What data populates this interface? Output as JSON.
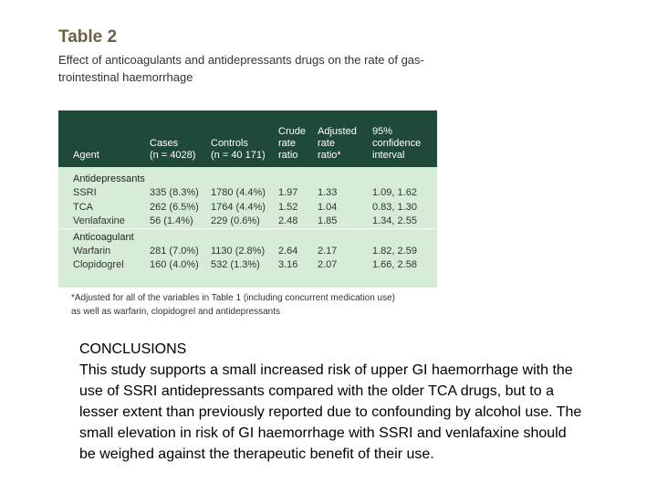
{
  "table_title": "Table 2",
  "caption": [
    "Effect of anticoagulants and antidepressants drugs on the rate of gas-",
    "trointestinal haemorrhage"
  ],
  "table": {
    "columns": [
      [
        "Agent"
      ],
      [
        "Cases",
        "(n = 4028)"
      ],
      [
        "Controls",
        "(n = 40 171)"
      ],
      [
        "Crude",
        "rate",
        "ratio"
      ],
      [
        "Adjusted",
        "rate",
        "ratio*"
      ],
      [
        "95%",
        "confidence",
        "interval"
      ]
    ],
    "sections": [
      {
        "name": "Antidepressants",
        "rows": [
          [
            "SSRI",
            "335 (8.3%)",
            "1780 (4.4%)",
            "1.97",
            "1.33",
            "1.09, 1.62"
          ],
          [
            "TCA",
            "262 (6.5%)",
            "1764 (4.4%)",
            "1.52",
            "1.04",
            "0.83, 1.30"
          ],
          [
            "Venlafaxine",
            "56 (1.4%)",
            "229 (0.6%)",
            "2.48",
            "1.85",
            "1.34, 2.55"
          ]
        ]
      },
      {
        "name": "Anticoagulant",
        "rows": [
          [
            "Warfarin",
            "281 (7.0%)",
            "1130 (2.8%)",
            "2.64",
            "2.17",
            "1.82, 2.59"
          ],
          [
            "Clopidogrel",
            "160 (4.0%)",
            "532 (1.3%)",
            "3.16",
            "2.07",
            "1.66, 2.58"
          ]
        ]
      }
    ]
  },
  "footnote": [
    "*Adjusted for all of the variables in Table 1 (including concurrent medication use)",
    "as well as warfarin, clopidogrel and antidepressants"
  ],
  "conclusions": {
    "heading": "CONCLUSIONS",
    "text": "This study supports a small increased risk of upper GI haemorrhage with the use of SSRI antidepressants compared with the older TCA drugs, but to a lesser extent than previously reported due to confounding by alcohol use. The small elevation in risk of GI haemorrhage with SSRI and venlafaxine should be weighed against the therapeutic benefit of their use."
  }
}
